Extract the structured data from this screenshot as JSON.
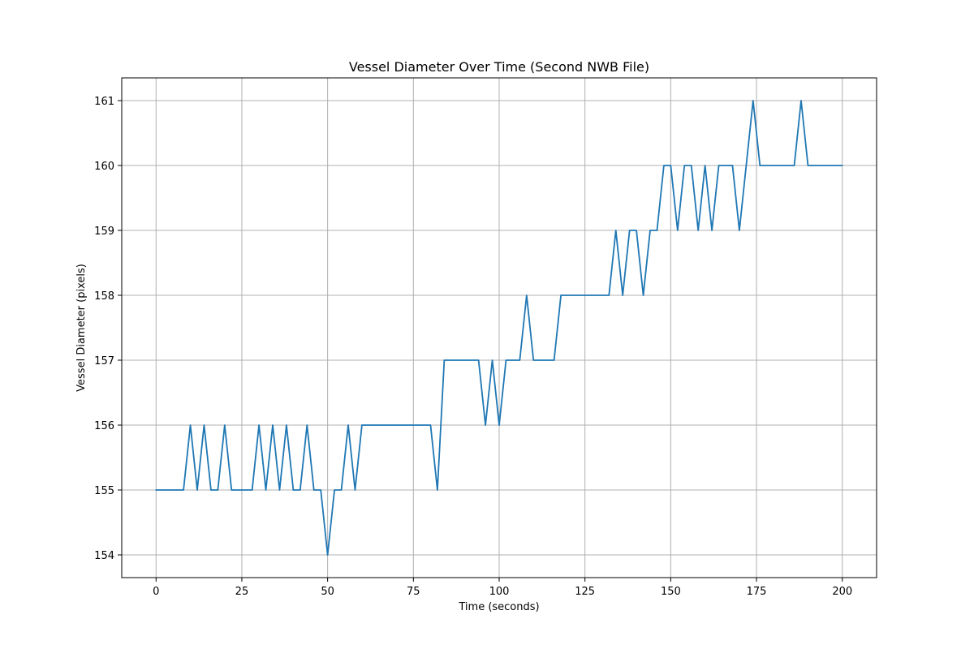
{
  "chart_data": {
    "type": "line",
    "title": "Vessel Diameter Over Time (Second NWB File)",
    "xlabel": "Time (seconds)",
    "ylabel": "Vessel Diameter (pixels)",
    "xlim": [
      -10,
      210
    ],
    "ylim": [
      153.65,
      161.35
    ],
    "xticks": [
      0,
      25,
      50,
      75,
      100,
      125,
      150,
      175,
      200
    ],
    "yticks": [
      154,
      155,
      156,
      157,
      158,
      159,
      160,
      161
    ],
    "grid": true,
    "series": [
      {
        "color": "#1f77b4",
        "x": [
          0,
          2,
          4,
          6,
          8,
          10,
          12,
          14,
          16,
          18,
          20,
          22,
          24,
          26,
          28,
          30,
          32,
          34,
          36,
          38,
          40,
          42,
          44,
          46,
          48,
          50,
          52,
          54,
          56,
          58,
          60,
          62,
          64,
          66,
          68,
          70,
          72,
          74,
          76,
          78,
          80,
          82,
          84,
          86,
          88,
          90,
          92,
          94,
          96,
          98,
          100,
          102,
          104,
          106,
          108,
          110,
          112,
          114,
          116,
          118,
          120,
          122,
          124,
          126,
          128,
          130,
          132,
          134,
          136,
          138,
          140,
          142,
          144,
          146,
          148,
          150,
          152,
          154,
          156,
          158,
          160,
          162,
          164,
          166,
          168,
          170,
          172,
          174,
          176,
          178,
          180,
          182,
          184,
          186,
          188,
          190,
          192,
          194,
          196,
          198,
          200
        ],
        "y": [
          155,
          155,
          155,
          155,
          155,
          156,
          155,
          156,
          155,
          155,
          156,
          155,
          155,
          155,
          155,
          156,
          155,
          156,
          155,
          156,
          155,
          155,
          156,
          155,
          155,
          154,
          155,
          155,
          156,
          155,
          156,
          156,
          156,
          156,
          156,
          156,
          156,
          156,
          156,
          156,
          156,
          155,
          157,
          157,
          157,
          157,
          157,
          157,
          156,
          157,
          156,
          157,
          157,
          157,
          158,
          157,
          157,
          157,
          157,
          158,
          158,
          158,
          158,
          158,
          158,
          158,
          158,
          159,
          158,
          159,
          159,
          158,
          159,
          159,
          160,
          160,
          159,
          160,
          160,
          159,
          160,
          159,
          160,
          160,
          160,
          159,
          160,
          161,
          160,
          160,
          160,
          160,
          160,
          160,
          161,
          160,
          160,
          160,
          160,
          160,
          160
        ]
      }
    ]
  }
}
